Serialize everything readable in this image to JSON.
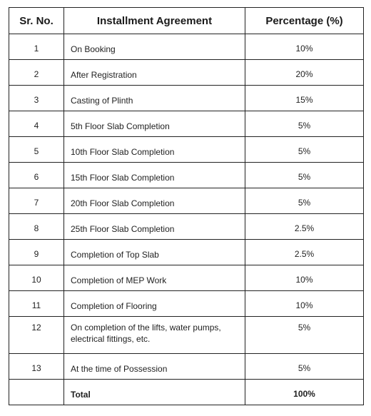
{
  "headers": {
    "sr": "Sr. No.",
    "agreement": "Installment Agreement",
    "percentage": "Percentage (%)"
  },
  "rows": [
    {
      "sr": "1",
      "agreement": "On Booking",
      "percentage": "10%"
    },
    {
      "sr": "2",
      "agreement": "After Registration",
      "percentage": "20%"
    },
    {
      "sr": "3",
      "agreement": "Casting of Plinth",
      "percentage": "15%"
    },
    {
      "sr": "4",
      "agreement": "5th Floor Slab Completion",
      "percentage": "5%"
    },
    {
      "sr": "5",
      "agreement": "10th Floor Slab Completion",
      "percentage": "5%"
    },
    {
      "sr": "6",
      "agreement": "15th Floor Slab Completion",
      "percentage": "5%"
    },
    {
      "sr": "7",
      "agreement": "20th Floor Slab Completion",
      "percentage": "5%"
    },
    {
      "sr": "8",
      "agreement": "25th Floor Slab Completion",
      "percentage": "2.5%"
    },
    {
      "sr": "9",
      "agreement": "Completion of Top Slab",
      "percentage": "2.5%"
    },
    {
      "sr": "10",
      "agreement": "Completion of MEP Work",
      "percentage": "10%"
    },
    {
      "sr": "11",
      "agreement": "Completion of Flooring",
      "percentage": "10%"
    },
    {
      "sr": "12",
      "agreement": "On completion of the lifts, water pumps, electrical fittings, etc.",
      "percentage": "5%"
    },
    {
      "sr": "13",
      "agreement": "At the time of Possession",
      "percentage": "5%"
    }
  ],
  "total": {
    "label": "Total",
    "percentage": "100%"
  }
}
